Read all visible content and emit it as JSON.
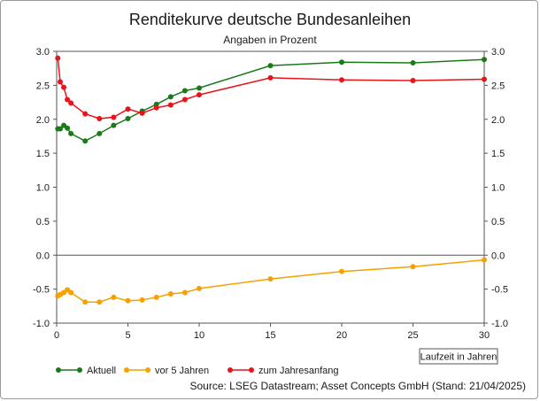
{
  "chart_data": {
    "type": "line",
    "title": "Renditekurve deutsche Bundesanleihen",
    "subtitle": "Angaben in Prozent",
    "xlabel": "Laufzeit in Jahren",
    "ylabel": "",
    "xlim": [
      0,
      30
    ],
    "ylim": [
      -1.0,
      3.0
    ],
    "xticks": [
      "0",
      "5",
      "10",
      "15",
      "20",
      "25",
      "30"
    ],
    "xtick_values": [
      0,
      5,
      10,
      15,
      20,
      25,
      30
    ],
    "yticks": [
      "-1.0",
      "-0.5",
      "0.0",
      "0.5",
      "1.0",
      "1.5",
      "2.0",
      "2.5",
      "3.0"
    ],
    "ytick_values": [
      -1.0,
      -0.5,
      0.0,
      0.5,
      1.0,
      1.5,
      2.0,
      2.5,
      3.0
    ],
    "grid": "horizontal zero line only",
    "legend_position": "bottom-left",
    "x": [
      0.08,
      0.25,
      0.5,
      0.75,
      1,
      2,
      3,
      4,
      5,
      6,
      7,
      8,
      9,
      10,
      15,
      20,
      25,
      30
    ],
    "series": [
      {
        "name": "Aktuell",
        "color": "#1a7a1a",
        "values": [
          1.86,
          1.86,
          1.91,
          1.87,
          1.79,
          1.68,
          1.79,
          1.91,
          2.01,
          2.12,
          2.22,
          2.33,
          2.42,
          2.46,
          2.79,
          2.84,
          2.83,
          2.88
        ]
      },
      {
        "name": "vor 5 Jahren",
        "color": "#f5a100",
        "values": [
          -0.6,
          -0.58,
          -0.55,
          -0.51,
          -0.55,
          -0.69,
          -0.69,
          -0.62,
          -0.67,
          -0.66,
          -0.62,
          -0.57,
          -0.55,
          -0.49,
          -0.35,
          -0.24,
          -0.17,
          -0.07
        ]
      },
      {
        "name": "zum Jahresanfang",
        "color": "#e8141b",
        "values": [
          2.9,
          2.55,
          2.47,
          2.29,
          2.24,
          2.08,
          2.01,
          2.03,
          2.15,
          2.09,
          2.17,
          2.21,
          2.29,
          2.36,
          2.61,
          2.58,
          2.57,
          2.59
        ]
      }
    ],
    "source": "Source: LSEG Datastream; Asset Concepts GmbH  (Stand: 21/04/2025)"
  }
}
